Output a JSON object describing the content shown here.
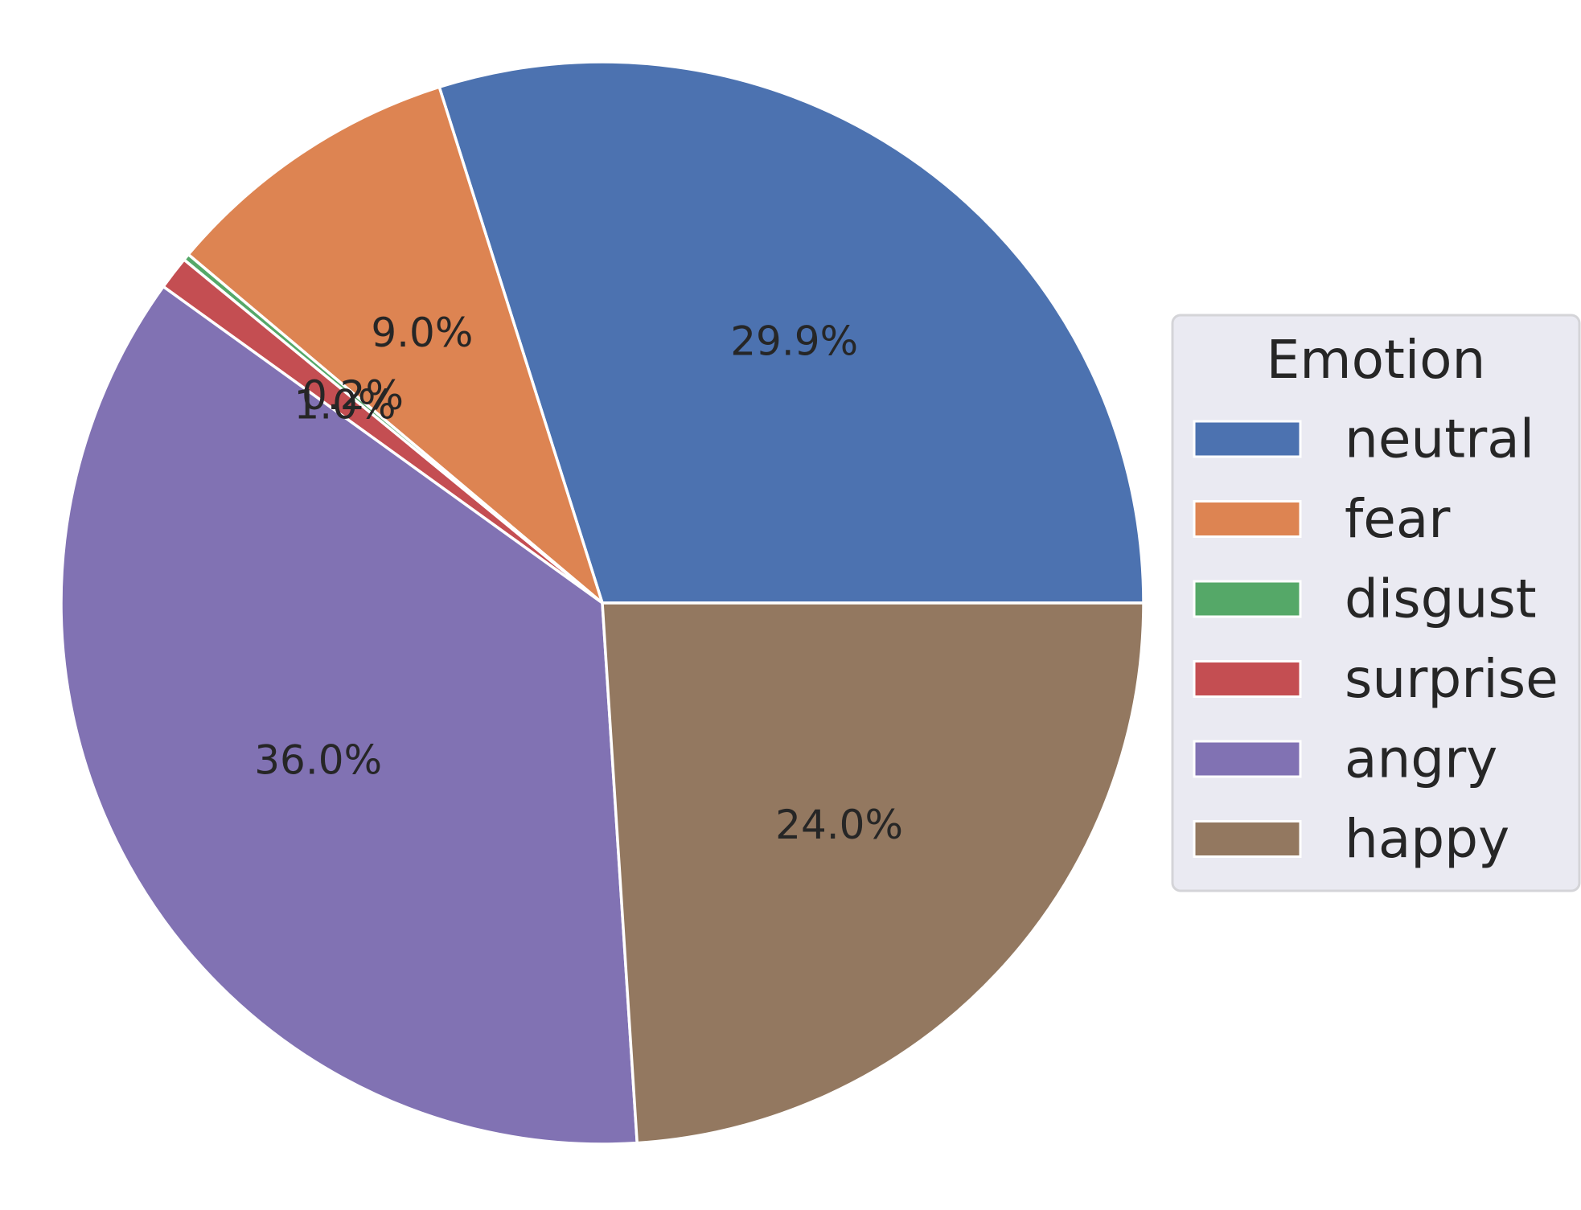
{
  "chart_data": {
    "type": "pie",
    "title": "",
    "legend": {
      "title": "Emotion",
      "placement": "center-right"
    },
    "slices": [
      {
        "label": "neutral",
        "value": 29.9,
        "pct_label": "29.9%",
        "color": "#4c72b0"
      },
      {
        "label": "fear",
        "value": 9.0,
        "pct_label": "9.0%",
        "color": "#dd8452"
      },
      {
        "label": "disgust",
        "value": 0.2,
        "pct_label": "0.2%",
        "color": "#55a868"
      },
      {
        "label": "surprise",
        "value": 1.0,
        "pct_label": "1.0%",
        "color": "#c44e52"
      },
      {
        "label": "angry",
        "value": 36.0,
        "pct_label": "36.0%",
        "color": "#8172b3"
      },
      {
        "label": "happy",
        "value": 24.0,
        "pct_label": "24.0%",
        "color": "#937860"
      }
    ],
    "start_angle_deg": 0,
    "direction": "counterclockwise"
  }
}
